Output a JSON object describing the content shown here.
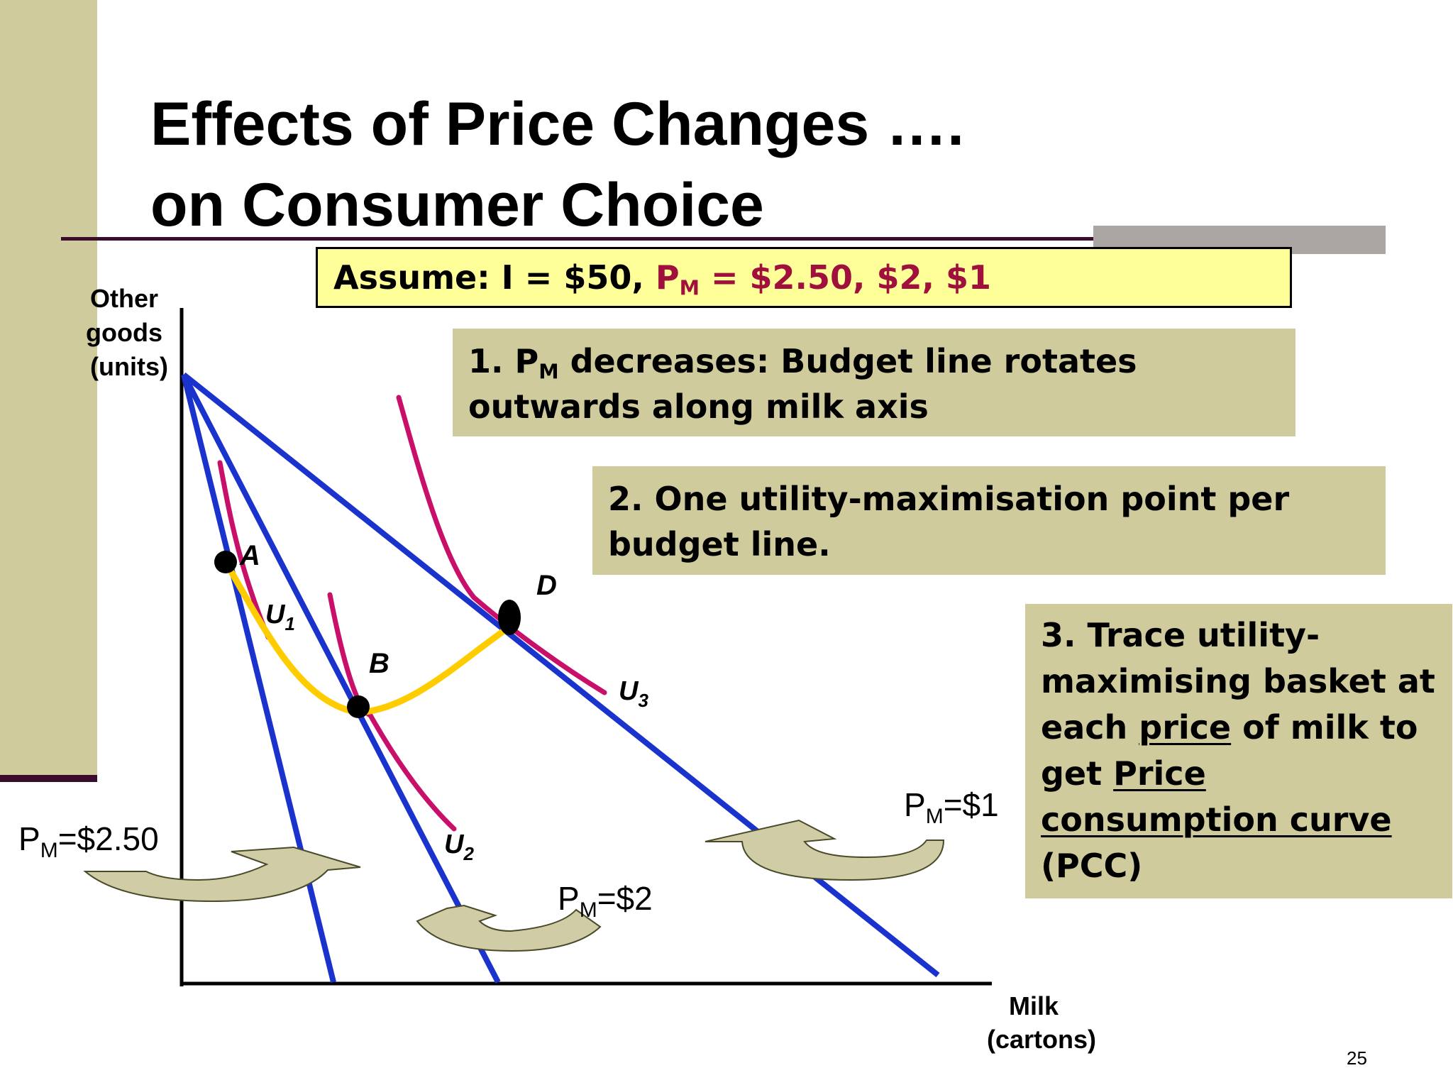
{
  "slide": {
    "title_line1": "Effects of Price Changes ….",
    "title_line2": "on Consumer Choice",
    "page_number": "25"
  },
  "assume": {
    "prefix": "Assume: I = $50, ",
    "pm_letter": "P",
    "pm_sub": "M",
    "prices": " = $2.50, $2, $1"
  },
  "steps": {
    "step1_a": "1. P",
    "step1_sub": "M",
    "step1_b": " decreases: Budget line rotates outwards along milk axis",
    "step2": "2. One utility-maximisation point per budget line.",
    "step3_a": "3. Trace utility-maximising basket at each ",
    "step3_link1": "price",
    "step3_b": " of milk to get ",
    "step3_link2": "Price consumption curve",
    "step3_c": " (PCC)"
  },
  "axes": {
    "y_label": [
      "Other",
      "goods",
      "(units)"
    ],
    "x_label": [
      "Milk",
      "(cartons)"
    ]
  },
  "points": {
    "a": "A",
    "b": "B",
    "d": "D"
  },
  "curves": {
    "u1_letter": "U",
    "u1_sub": "1",
    "u2_letter": "U",
    "u2_sub": "2",
    "u3_letter": "U",
    "u3_sub": "3"
  },
  "price_labels": {
    "p_letter": "P",
    "p_sub": "M",
    "p1_value": "=$2.50",
    "p2_value": "=$2",
    "p3_value": "=$1"
  },
  "colors": {
    "budget_line": "#1a33cc",
    "indifference": "#c8106a",
    "pcc": "#ffcc00",
    "panel": "#cfcb9d",
    "assume_fill": "#ffff99",
    "assume_red": "#a0103c",
    "arrow_fill": "#d0cda6",
    "arrow_stroke": "#4a4a2a"
  }
}
